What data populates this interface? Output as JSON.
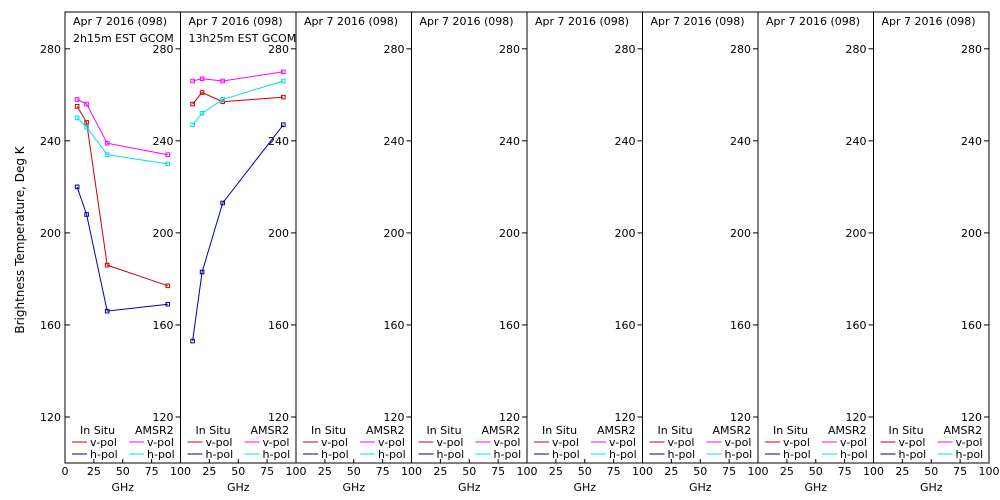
{
  "chart_data": {
    "type": "line",
    "ylabel": "Brightness Temperature, Deg K",
    "xlabel": "GHz",
    "xlim": [
      0,
      100
    ],
    "ylim": [
      100,
      296
    ],
    "yticks": [
      120,
      160,
      200,
      240,
      280
    ],
    "yticks_first_panel": [
      120,
      160,
      200,
      240,
      280
    ],
    "xticks_panel_first": [
      0,
      25,
      50,
      75,
      100
    ],
    "xticks_panel_other": [
      25,
      50,
      75,
      100
    ],
    "legend": {
      "col1": "In Situ",
      "col2": "AMSR2",
      "row1": "v-pol",
      "row2": "h-pol"
    },
    "colors": {
      "insitu_v": "#cc0000",
      "insitu_h": "#0000aa",
      "amsr2_v": "#ff00ff",
      "amsr2_h": "#00e0e0"
    },
    "panels": [
      {
        "title": "Apr 7 2016 (098)",
        "subtitle": "2h15m EST GCOM",
        "series": [
          {
            "name": "In Situ v-pol",
            "key": "insitu_v",
            "x": [
              10.5,
              18.7,
              36.5,
              89
            ],
            "y": [
              255,
              248,
              186,
              177
            ]
          },
          {
            "name": "In Situ h-pol",
            "key": "insitu_h",
            "x": [
              10.5,
              18.7,
              36.5,
              89
            ],
            "y": [
              220,
              208,
              166,
              169
            ]
          },
          {
            "name": "AMSR2 v-pol",
            "key": "amsr2_v",
            "x": [
              10.5,
              18.7,
              36.5,
              89
            ],
            "y": [
              258,
              256,
              239,
              234
            ]
          },
          {
            "name": "AMSR2 h-pol",
            "key": "amsr2_h",
            "x": [
              10.5,
              18.7,
              36.5,
              89
            ],
            "y": [
              250,
              246,
              234,
              230
            ]
          }
        ]
      },
      {
        "title": "Apr 7 2016 (098)",
        "subtitle": "13h25m EST GCOM",
        "series": [
          {
            "name": "In Situ v-pol",
            "key": "insitu_v",
            "x": [
              10.5,
              18.7,
              36.5,
              89
            ],
            "y": [
              256,
              261,
              257,
              259
            ]
          },
          {
            "name": "In Situ h-pol",
            "key": "insitu_h",
            "x": [
              10.5,
              18.7,
              36.5,
              89
            ],
            "y": [
              153,
              183,
              213,
              247
            ]
          },
          {
            "name": "AMSR2 v-pol",
            "key": "amsr2_v",
            "x": [
              10.5,
              18.7,
              36.5,
              89
            ],
            "y": [
              266,
              267,
              266,
              270
            ]
          },
          {
            "name": "AMSR2 h-pol",
            "key": "amsr2_h",
            "x": [
              10.5,
              18.7,
              36.5,
              89
            ],
            "y": [
              247,
              252,
              258,
              266
            ]
          }
        ]
      },
      {
        "title": "Apr 7 2016 (098)",
        "subtitle": "",
        "series": []
      },
      {
        "title": "Apr 7 2016 (098)",
        "subtitle": "",
        "series": []
      },
      {
        "title": "Apr 7 2016 (098)",
        "subtitle": "",
        "series": []
      },
      {
        "title": "Apr 7 2016 (098)",
        "subtitle": "",
        "series": []
      },
      {
        "title": "Apr 7 2016 (098)",
        "subtitle": "",
        "series": []
      },
      {
        "title": "Apr 7 2016 (098)",
        "subtitle": "",
        "series": []
      }
    ]
  }
}
